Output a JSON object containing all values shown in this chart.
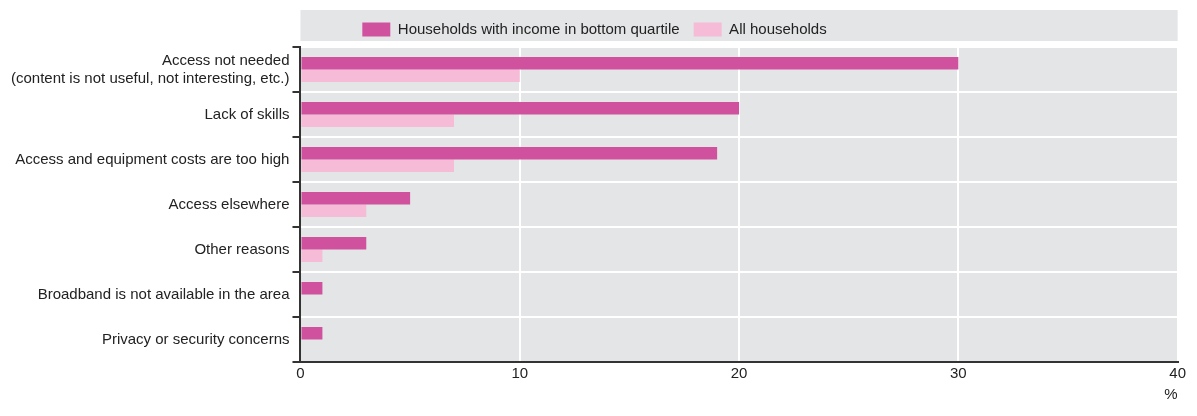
{
  "chart_data": {
    "type": "bar",
    "orientation": "horizontal",
    "categories": [
      "Access not needed\n(content is not useful, not interesting, etc.)",
      "Lack of skills",
      "Access and equipment costs are too high",
      "Access elsewhere",
      "Other reasons",
      "Broadband is not available in the area",
      "Privacy or security concerns"
    ],
    "series": [
      {
        "name": "Households with income in bottom quartile",
        "color": "#d0529e",
        "values": [
          30,
          20,
          19,
          5,
          3,
          1,
          1
        ]
      },
      {
        "name": "All households",
        "color": "#f6bbd6",
        "values": [
          10,
          7,
          7,
          3,
          1,
          null,
          null
        ]
      }
    ],
    "xlim": [
      0,
      40
    ],
    "xticks": [
      0,
      10,
      20,
      30,
      40
    ],
    "xlabel": "%",
    "grid": true,
    "legend": "top"
  }
}
